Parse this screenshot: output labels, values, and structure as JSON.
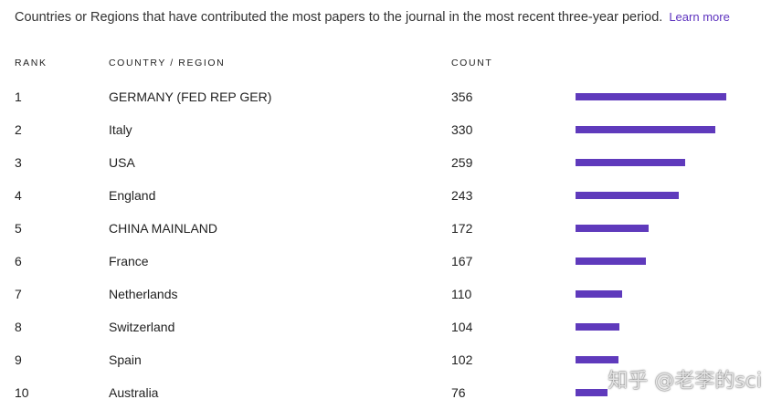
{
  "intro": {
    "text": "Countries or Regions that have contributed the most papers to the journal in the most recent three-year period.",
    "learn_more": "Learn more"
  },
  "table": {
    "headers": {
      "rank": "RANK",
      "country": "COUNTRY / REGION",
      "count": "COUNT"
    },
    "rows": [
      {
        "rank": "1",
        "country": "GERMANY (FED REP GER)",
        "count": "356"
      },
      {
        "rank": "2",
        "country": "Italy",
        "count": "330"
      },
      {
        "rank": "3",
        "country": "USA",
        "count": "259"
      },
      {
        "rank": "4",
        "country": "England",
        "count": "243"
      },
      {
        "rank": "5",
        "country": "CHINA MAINLAND",
        "count": "172"
      },
      {
        "rank": "6",
        "country": "France",
        "count": "167"
      },
      {
        "rank": "7",
        "country": "Netherlands",
        "count": "110"
      },
      {
        "rank": "8",
        "country": "Switzerland",
        "count": "104"
      },
      {
        "rank": "9",
        "country": "Spain",
        "count": "102"
      },
      {
        "rank": "10",
        "country": "Australia",
        "count": "76"
      }
    ],
    "bar_color": "#5f3abc",
    "bar_max_value": 356
  },
  "watermark": "知乎 @老李的sci"
}
